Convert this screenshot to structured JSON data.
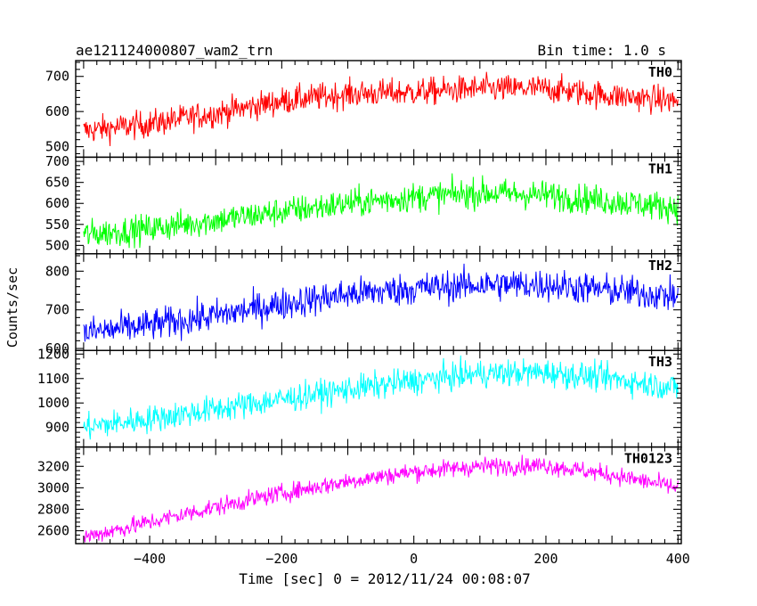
{
  "chart_data": {
    "type": "line",
    "title": "ae121124000807_wam2_trn",
    "bin_time_label": "Bin time: 1.0 s",
    "xlabel": "Time [sec] 0 = 2012/11/24 00:08:07",
    "ylabel": "Counts/sec",
    "xlim": [
      -512,
      405
    ],
    "x_ticks": [
      -400,
      -200,
      0,
      200,
      400
    ],
    "x_tick_labels": [
      "−400",
      "−200",
      "0",
      "200",
      "400"
    ],
    "x_range_data": [
      -500,
      400
    ],
    "grid": false,
    "legend": "none",
    "panels": [
      {
        "name": "TH0",
        "color": "#ff0000",
        "ylim": [
          470,
          745
        ],
        "y_ticks": [
          500,
          600,
          700
        ],
        "trend_x": [
          -500,
          -400,
          -300,
          -200,
          -100,
          0,
          100,
          200,
          300,
          400
        ],
        "trend_y": [
          545,
          565,
          595,
          630,
          650,
          655,
          665,
          665,
          645,
          630
        ],
        "noise": 28
      },
      {
        "name": "TH1",
        "color": "#00ff00",
        "ylim": [
          480,
          710
        ],
        "y_ticks": [
          500,
          550,
          600,
          650,
          700
        ],
        "trend_x": [
          -500,
          -400,
          -300,
          -200,
          -100,
          0,
          100,
          200,
          300,
          400
        ],
        "trend_y": [
          525,
          540,
          560,
          580,
          600,
          615,
          625,
          620,
          605,
          590
        ],
        "noise": 25
      },
      {
        "name": "TH2",
        "color": "#0000ff",
        "ylim": [
          595,
          845
        ],
        "y_ticks": [
          600,
          700,
          800
        ],
        "trend_x": [
          -500,
          -400,
          -300,
          -200,
          -100,
          0,
          100,
          200,
          300,
          400
        ],
        "trend_y": [
          640,
          660,
          685,
          715,
          740,
          755,
          765,
          765,
          750,
          735
        ],
        "noise": 30
      },
      {
        "name": "TH3",
        "color": "#00ffff",
        "ylim": [
          820,
          1215
        ],
        "y_ticks": [
          900,
          1000,
          1100,
          1200
        ],
        "trend_x": [
          -500,
          -400,
          -300,
          -200,
          -100,
          0,
          100,
          200,
          300,
          400
        ],
        "trend_y": [
          900,
          935,
          975,
          1015,
          1055,
          1090,
          1120,
          1125,
          1100,
          1060
        ],
        "noise": 40
      },
      {
        "name": "TH0123",
        "color": "#ff00ff",
        "ylim": [
          2480,
          3380
        ],
        "y_ticks": [
          2600,
          2800,
          3000,
          3200
        ],
        "trend_x": [
          -500,
          -400,
          -300,
          -200,
          -100,
          0,
          100,
          200,
          300,
          400
        ],
        "trend_y": [
          2540,
          2680,
          2820,
          2950,
          3060,
          3150,
          3200,
          3210,
          3120,
          3000
        ],
        "noise": 60
      }
    ]
  }
}
